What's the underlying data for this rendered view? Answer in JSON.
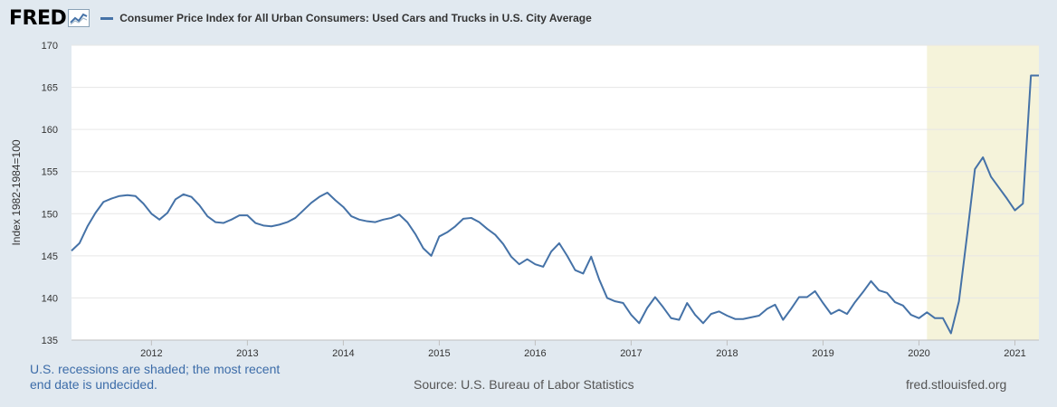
{
  "header": {
    "logo_text": "FRED",
    "legend_label": "Consumer Price Index for All Urban Consumers: Used Cars and Trucks in U.S. City Average"
  },
  "footer": {
    "recession_note_line1": "U.S. recessions are shaded; the most recent",
    "recession_note_line2": "end date is undecided.",
    "source": "Source: U.S. Bureau of Labor Statistics",
    "url": "fred.stlouisfed.org"
  },
  "colors": {
    "series": "#4572a7",
    "recession_shade": "#f5f3da",
    "background": "#e1e9f0",
    "plot": "#ffffff",
    "grid": "#e6e6e6"
  },
  "chart_data": {
    "type": "line",
    "title": "",
    "xlabel": "",
    "ylabel": "Index 1982-1984=100",
    "ylim": [
      135,
      170
    ],
    "xlim": [
      "2011-03",
      "2021-04"
    ],
    "grid": true,
    "y_ticks": [
      "135",
      "140",
      "145",
      "150",
      "155",
      "160",
      "165",
      "170"
    ],
    "x_ticks": [
      "2012",
      "2013",
      "2014",
      "2015",
      "2016",
      "2017",
      "2018",
      "2019",
      "2020",
      "2021"
    ],
    "recession_shading": [
      {
        "start": "2020-02",
        "end": "2021-04"
      }
    ],
    "series": [
      {
        "name": "Consumer Price Index for All Urban Consumers: Used Cars and Trucks in U.S. City Average",
        "x": [
          "2011-03",
          "2011-04",
          "2011-05",
          "2011-06",
          "2011-07",
          "2011-08",
          "2011-09",
          "2011-10",
          "2011-11",
          "2011-12",
          "2012-01",
          "2012-02",
          "2012-03",
          "2012-04",
          "2012-05",
          "2012-06",
          "2012-07",
          "2012-08",
          "2012-09",
          "2012-10",
          "2012-11",
          "2012-12",
          "2013-01",
          "2013-02",
          "2013-03",
          "2013-04",
          "2013-05",
          "2013-06",
          "2013-07",
          "2013-08",
          "2013-09",
          "2013-10",
          "2013-11",
          "2013-12",
          "2014-01",
          "2014-02",
          "2014-03",
          "2014-04",
          "2014-05",
          "2014-06",
          "2014-07",
          "2014-08",
          "2014-09",
          "2014-10",
          "2014-11",
          "2014-12",
          "2015-01",
          "2015-02",
          "2015-03",
          "2015-04",
          "2015-05",
          "2015-06",
          "2015-07",
          "2015-08",
          "2015-09",
          "2015-10",
          "2015-11",
          "2015-12",
          "2016-01",
          "2016-02",
          "2016-03",
          "2016-04",
          "2016-05",
          "2016-06",
          "2016-07",
          "2016-08",
          "2016-09",
          "2016-10",
          "2016-11",
          "2016-12",
          "2017-01",
          "2017-02",
          "2017-03",
          "2017-04",
          "2017-05",
          "2017-06",
          "2017-07",
          "2017-08",
          "2017-09",
          "2017-10",
          "2017-11",
          "2017-12",
          "2018-01",
          "2018-02",
          "2018-03",
          "2018-04",
          "2018-05",
          "2018-06",
          "2018-07",
          "2018-08",
          "2018-09",
          "2018-10",
          "2018-11",
          "2018-12",
          "2019-01",
          "2019-02",
          "2019-03",
          "2019-04",
          "2019-05",
          "2019-06",
          "2019-07",
          "2019-08",
          "2019-09",
          "2019-10",
          "2019-11",
          "2019-12",
          "2020-01",
          "2020-02",
          "2020-03",
          "2020-04",
          "2020-05",
          "2020-06",
          "2020-07",
          "2020-08",
          "2020-09",
          "2020-10",
          "2020-11",
          "2020-12",
          "2021-01",
          "2021-02",
          "2021-03",
          "2021-04"
        ],
        "values": [
          145.6,
          146.5,
          148.5,
          150.1,
          151.4,
          151.8,
          152.1,
          152.2,
          152.1,
          151.2,
          150.0,
          149.3,
          150.1,
          151.7,
          152.3,
          152.0,
          151.0,
          149.7,
          149.0,
          148.9,
          149.3,
          149.8,
          149.8,
          148.9,
          148.6,
          148.5,
          148.7,
          149.0,
          149.5,
          150.4,
          151.3,
          152.0,
          152.5,
          151.6,
          150.8,
          149.7,
          149.3,
          149.1,
          149.0,
          149.3,
          149.5,
          149.9,
          149.0,
          147.6,
          145.9,
          145.0,
          147.3,
          147.8,
          148.5,
          149.4,
          149.5,
          149.0,
          148.2,
          147.5,
          146.4,
          144.9,
          144.0,
          144.6,
          144.0,
          143.7,
          145.5,
          146.5,
          145.0,
          143.3,
          142.9,
          144.9,
          142.2,
          140.0,
          139.6,
          139.4,
          138.0,
          137.0,
          138.8,
          140.1,
          138.9,
          137.6,
          137.4,
          139.4,
          138.0,
          137.0,
          138.1,
          138.4,
          137.9,
          137.5,
          137.5,
          137.7,
          137.9,
          138.7,
          139.2,
          137.4,
          138.7,
          140.1,
          140.1,
          140.8,
          139.4,
          138.1,
          138.6,
          138.1,
          139.5,
          140.7,
          142.0,
          140.9,
          140.6,
          139.5,
          139.1,
          138.0,
          137.6,
          138.3,
          137.6,
          137.6,
          135.8,
          139.6,
          147.3,
          155.3,
          156.7,
          154.4,
          153.1,
          151.8,
          150.4,
          151.2,
          166.4,
          166.4
        ]
      }
    ]
  }
}
